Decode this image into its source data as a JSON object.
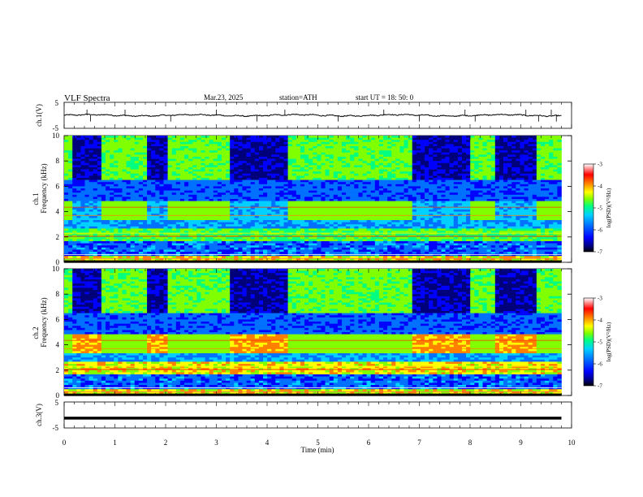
{
  "header": {
    "title": "VLF  Spectra",
    "date": "Mar.23, 2025",
    "station": "station=ATH",
    "start": "start  UT  =   18: 50: 0"
  },
  "chart_data": [
    {
      "type": "line",
      "panel": "ch1-waveform",
      "ylabel": "ch.1(V)",
      "ylim": [
        -5,
        5
      ],
      "yticks": [
        "5",
        "-5"
      ],
      "xlim": [
        0,
        10
      ],
      "series": [
        {
          "values_description_level": 0.0
        }
      ]
    },
    {
      "type": "heatmap",
      "panel": "ch1-spectrogram",
      "ylabel": "ch.1\nFrequency (kHz)",
      "ylabel_line1": "ch.1",
      "ylabel_line2": "Frequency (kHz)",
      "ylim": [
        0,
        10
      ],
      "yticks": [
        "0",
        "2",
        "4",
        "6",
        "8",
        "10"
      ],
      "xlim": [
        0,
        10
      ],
      "data_end_min": 9.8,
      "burst_intervals_min": [
        [
          0.2,
          0.7
        ],
        [
          1.6,
          2.05
        ],
        [
          3.3,
          4.4
        ],
        [
          6.9,
          8.0
        ],
        [
          8.5,
          9.3
        ]
      ],
      "colorbar": {
        "label": "log(PSD)(V²/Hz)",
        "range": [
          -7,
          -3
        ],
        "ticks": [
          "-3",
          "-4",
          "-5",
          "-6",
          "-7"
        ]
      }
    },
    {
      "type": "heatmap",
      "panel": "ch2-spectrogram",
      "ylabel_line1": "ch.2",
      "ylabel_line2": "Frequency (kHz)",
      "ylim": [
        0,
        10
      ],
      "yticks": [
        "0",
        "2",
        "4",
        "6",
        "8",
        "10"
      ],
      "xlim": [
        0,
        10
      ],
      "data_end_min": 9.8,
      "burst_intervals_min": [
        [
          0.2,
          0.7
        ],
        [
          1.6,
          2.05
        ],
        [
          3.3,
          4.4
        ],
        [
          6.9,
          8.0
        ],
        [
          8.5,
          9.3
        ]
      ],
      "colorbar": {
        "label": "log(PSD)(V²/Hz)",
        "range": [
          -7,
          -3
        ],
        "ticks": [
          "-3",
          "-4",
          "-5",
          "-6",
          "-7"
        ]
      }
    },
    {
      "type": "line",
      "panel": "ch3-waveform",
      "ylabel": "ch.3(V)",
      "ylim": [
        -5,
        5
      ],
      "yticks": [
        "5",
        "-5"
      ],
      "xlim": [
        0,
        10
      ],
      "series": [
        {
          "constant_level": -1.2
        }
      ]
    }
  ],
  "xaxis": {
    "label": "Time  (min)",
    "ticks": [
      "0",
      "1",
      "2",
      "3",
      "4",
      "5",
      "6",
      "7",
      "8",
      "9",
      "10"
    ]
  },
  "colors": {
    "colormap": [
      "#000000",
      "#00007a",
      "#0000ff",
      "#0070ff",
      "#00d0ff",
      "#00ff80",
      "#80ff00",
      "#ffff00",
      "#ff8000",
      "#ff0000",
      "#ffffff"
    ]
  }
}
